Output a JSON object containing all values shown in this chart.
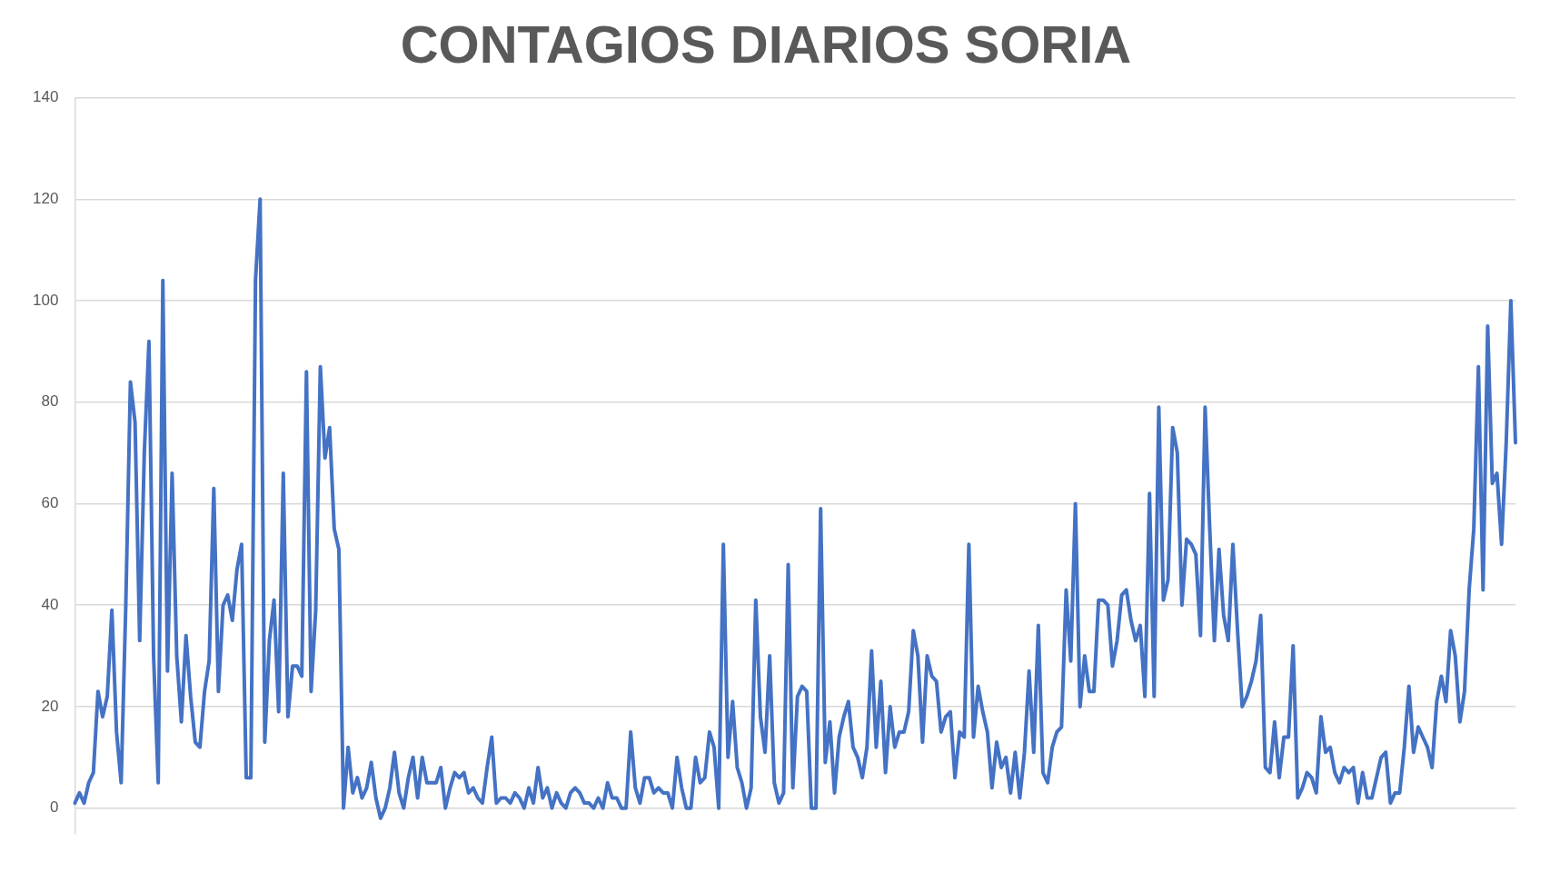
{
  "chart_data": {
    "type": "line",
    "title": "CONTAGIOS DIARIOS SORIA",
    "categories": [
      null,
      null,
      null,
      null,
      null,
      null,
      null,
      null,
      null,
      null,
      null,
      null,
      null,
      null,
      null,
      null,
      null,
      null,
      null,
      null,
      null,
      null,
      null,
      null,
      null,
      null,
      null,
      null,
      null,
      null,
      null,
      null,
      null,
      null,
      null,
      null,
      null,
      null,
      null,
      null,
      null,
      null,
      null,
      null,
      null,
      null,
      null,
      null,
      null,
      null,
      null,
      null,
      null,
      null,
      null,
      null,
      null,
      null,
      null,
      null,
      null,
      null,
      null,
      null,
      null,
      null,
      null,
      null,
      null,
      null,
      null,
      null,
      null,
      null,
      null,
      null,
      null,
      null,
      null,
      null,
      null,
      null,
      null,
      null,
      null,
      null,
      null,
      null,
      null,
      null,
      null,
      null,
      null,
      null,
      null,
      null,
      null,
      null,
      null,
      null,
      null,
      null,
      null,
      null,
      null,
      null,
      null,
      null,
      null,
      null,
      null,
      null,
      null,
      null,
      null,
      null,
      null,
      null,
      null,
      null,
      null,
      null,
      null,
      null,
      null,
      null,
      null,
      null,
      null,
      null,
      null,
      null,
      null,
      null,
      null,
      null,
      null,
      null,
      null,
      null,
      null,
      null,
      null,
      null,
      null,
      null,
      null,
      null,
      null,
      null,
      null,
      null,
      null,
      null,
      null,
      null,
      null,
      null,
      null,
      null,
      null,
      null,
      null,
      null,
      null,
      null,
      null,
      null,
      null,
      null,
      null,
      null,
      null,
      null,
      null,
      null,
      null,
      null,
      null,
      null,
      null,
      null,
      null,
      null,
      null,
      null,
      null,
      null,
      null,
      null,
      null,
      null,
      null,
      null,
      null,
      null,
      null,
      null,
      null,
      null,
      null,
      null,
      null,
      null,
      null,
      null,
      null,
      null,
      null,
      null,
      null,
      null,
      null,
      null,
      null,
      null,
      null,
      null,
      null,
      null,
      null,
      null,
      null,
      null,
      null,
      null,
      null,
      null,
      null,
      null,
      null,
      null,
      null,
      null,
      null,
      null,
      null,
      null,
      null,
      null,
      null,
      null,
      null,
      null,
      null,
      null,
      null,
      null,
      null,
      null,
      null,
      null,
      null,
      null,
      null,
      null,
      null,
      null,
      null,
      null,
      null,
      null,
      null,
      null,
      null,
      null,
      null,
      null,
      null,
      null,
      null,
      null,
      null,
      null,
      null,
      null,
      null,
      null,
      null,
      null,
      null,
      null,
      null,
      null,
      null,
      null,
      null,
      null,
      null,
      null,
      null,
      null,
      null,
      null,
      null,
      null,
      null,
      null,
      null,
      null,
      null,
      null,
      null,
      null,
      null,
      null,
      null,
      null,
      null,
      null,
      null,
      null
    ],
    "series": [
      {
        "color": "#4472c4",
        "values": [
          1,
          3,
          1,
          5,
          7,
          23,
          18,
          22,
          39,
          15,
          5,
          40,
          84,
          76,
          33,
          70,
          92,
          30,
          5,
          104,
          27,
          66,
          30,
          17,
          34,
          22,
          13,
          12,
          23,
          29,
          63,
          23,
          40,
          42,
          37,
          47,
          52,
          6,
          6,
          104,
          120,
          13,
          33,
          41,
          19,
          66,
          18,
          28,
          28,
          26,
          86,
          23,
          39,
          87,
          69,
          75,
          55,
          51,
          0,
          12,
          3,
          6,
          2,
          4,
          9,
          2,
          -2,
          0,
          4,
          11,
          3,
          0,
          6,
          10,
          2,
          10,
          5,
          5,
          5,
          8,
          0,
          4,
          7,
          6,
          7,
          3,
          4,
          2,
          1,
          8,
          14,
          1,
          2,
          2,
          1,
          3,
          2,
          0,
          4,
          1,
          8,
          2,
          4,
          0,
          3,
          1,
          0,
          3,
          4,
          3,
          1,
          1,
          0,
          2,
          0,
          5,
          2,
          2,
          0,
          0,
          15,
          4,
          1,
          6,
          6,
          3,
          4,
          3,
          3,
          0,
          10,
          4,
          0,
          0,
          10,
          5,
          6,
          15,
          12,
          0,
          52,
          10,
          21,
          8,
          5,
          0,
          4,
          41,
          18,
          11,
          30,
          5,
          1,
          3,
          48,
          4,
          22,
          24,
          23,
          0,
          0,
          59,
          9,
          17,
          3,
          14,
          18,
          21,
          12,
          10,
          6,
          12,
          31,
          12,
          25,
          7,
          20,
          12,
          15,
          15,
          19,
          35,
          30,
          13,
          30,
          26,
          25,
          15,
          18,
          19,
          6,
          15,
          14,
          52,
          14,
          24,
          19,
          15,
          4,
          13,
          8,
          10,
          3,
          11,
          2,
          11,
          27,
          11,
          36,
          7,
          5,
          12,
          15,
          16,
          43,
          29,
          60,
          20,
          30,
          23,
          23,
          41,
          41,
          40,
          28,
          33,
          42,
          43,
          37,
          33,
          36,
          22,
          62,
          22,
          79,
          41,
          45,
          75,
          70,
          40,
          53,
          52,
          50,
          34,
          79,
          55,
          33,
          51,
          38,
          33,
          52,
          35,
          20,
          22,
          25,
          29,
          38,
          8,
          7,
          17,
          6,
          14,
          14,
          32,
          2,
          4,
          7,
          6,
          3,
          18,
          11,
          12,
          7,
          5,
          8,
          7,
          8,
          1,
          7,
          2,
          2,
          6,
          10,
          11,
          1,
          3,
          3,
          12,
          24,
          11,
          16,
          14,
          12,
          8,
          21,
          26,
          21,
          35,
          30,
          17,
          23,
          43,
          55,
          87,
          43,
          95,
          64,
          66,
          52,
          72,
          100,
          72
        ]
      }
    ],
    "ylim": [
      -5,
      140
    ],
    "yticks": [
      0,
      20,
      40,
      60,
      80,
      100,
      120,
      140
    ],
    "grid": "y",
    "legend": false,
    "marker": "none",
    "line_style": "solid"
  }
}
